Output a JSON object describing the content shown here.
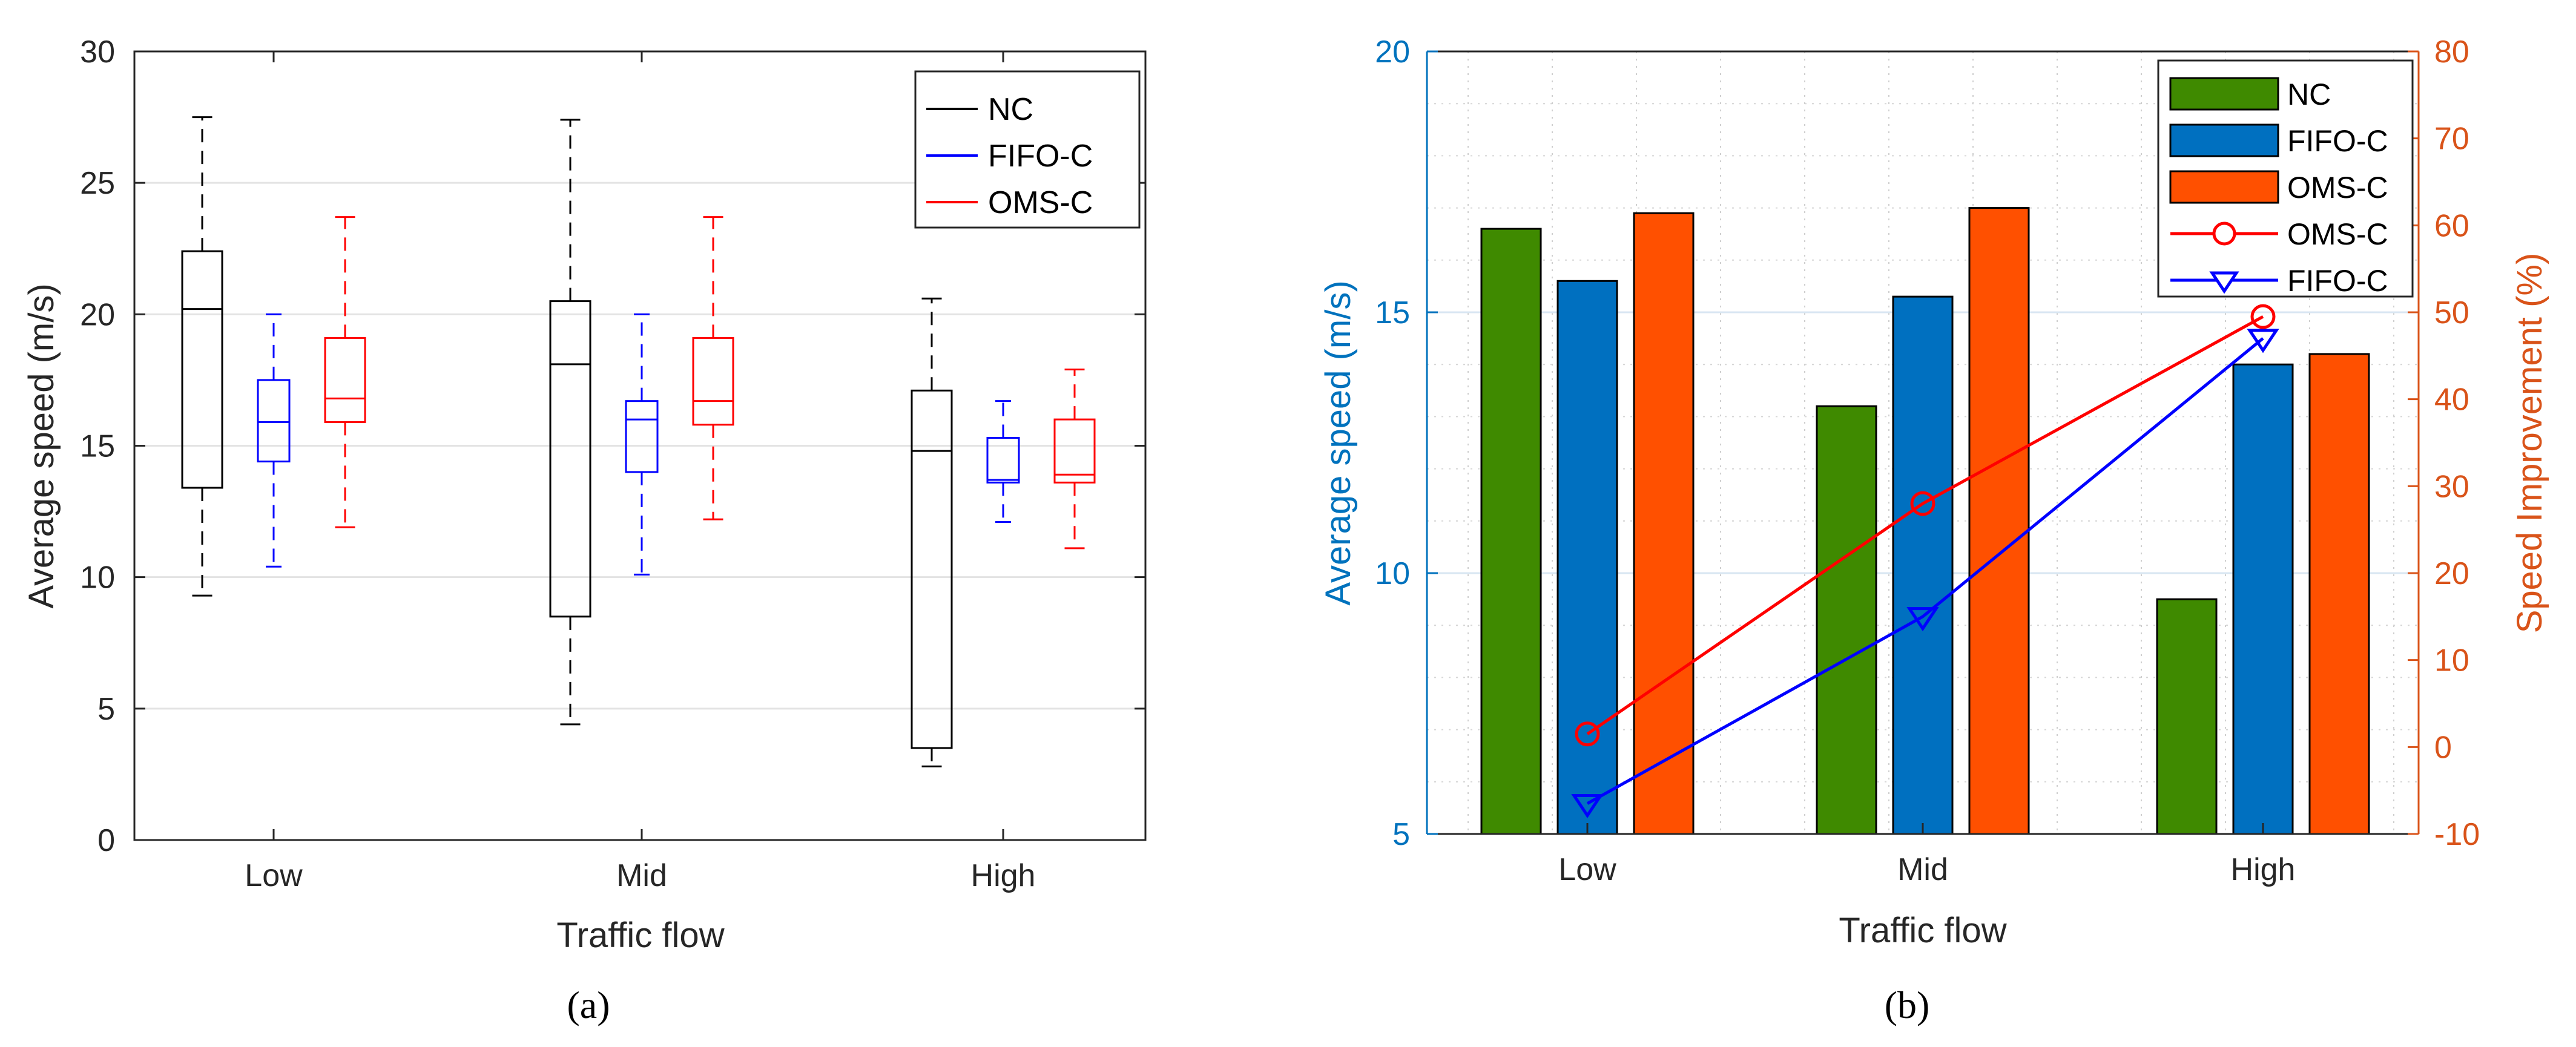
{
  "chart_data": [
    {
      "type": "box",
      "panel_label": "(a)",
      "panel_letter": "a",
      "xlabel": "Traffic flow",
      "ylabel": "Average speed (m/s)",
      "ylim": [
        0,
        30
      ],
      "yticks": [
        0,
        5,
        10,
        15,
        20,
        25,
        30
      ],
      "ytick_labels": [
        "0",
        "5",
        "10",
        "15",
        "20",
        "25",
        "30"
      ],
      "grid": "horizontal",
      "categories": [
        "Low",
        "Mid",
        "High"
      ],
      "legend": {
        "position": "top-right",
        "entries": [
          "NC",
          "FIFO-C",
          "OMS-C"
        ]
      },
      "series": [
        {
          "name": "NC",
          "color": "#000000",
          "boxes": [
            {
              "whisker_low": 9.3,
              "q1": 13.4,
              "median": 20.2,
              "q3": 22.4,
              "whisker_high": 27.5
            },
            {
              "whisker_low": 4.4,
              "q1": 8.5,
              "median": 18.1,
              "q3": 20.5,
              "whisker_high": 27.4
            },
            {
              "whisker_low": 2.8,
              "q1": 3.5,
              "median": 14.8,
              "q3": 17.1,
              "whisker_high": 20.6
            }
          ]
        },
        {
          "name": "FIFO-C",
          "color": "#0000ff",
          "boxes": [
            {
              "whisker_low": 10.4,
              "q1": 14.4,
              "median": 15.9,
              "q3": 17.5,
              "whisker_high": 20.0
            },
            {
              "whisker_low": 10.1,
              "q1": 14.0,
              "median": 16.0,
              "q3": 16.7,
              "whisker_high": 20.0
            },
            {
              "whisker_low": 12.1,
              "q1": 13.6,
              "median": 13.7,
              "q3": 15.3,
              "whisker_high": 16.7
            }
          ]
        },
        {
          "name": "OMS-C",
          "color": "#ff0000",
          "boxes": [
            {
              "whisker_low": 11.9,
              "q1": 15.9,
              "median": 16.8,
              "q3": 19.1,
              "whisker_high": 23.7
            },
            {
              "whisker_low": 12.2,
              "q1": 15.8,
              "median": 16.7,
              "q3": 19.1,
              "whisker_high": 23.7
            },
            {
              "whisker_low": 11.1,
              "q1": 13.6,
              "median": 13.9,
              "q3": 16.0,
              "whisker_high": 17.9
            }
          ]
        }
      ]
    },
    {
      "type": "bar+line",
      "panel_label": "(b)",
      "panel_letter": "b",
      "xlabel": "Traffic flow",
      "ylabel": "Average speed (m/s)",
      "ylabel_right": "Speed Improvement (%)",
      "ylim": [
        5,
        20
      ],
      "yticks": [
        5,
        10,
        15,
        20
      ],
      "ytick_labels": [
        "5",
        "10",
        "15",
        "20"
      ],
      "ylim_right": [
        -10,
        80
      ],
      "yticks_right": [
        -10,
        0,
        10,
        20,
        30,
        40,
        50,
        60,
        70,
        80
      ],
      "ytick_labels_right": [
        "-10",
        "0",
        "10",
        "20",
        "30",
        "40",
        "50",
        "60",
        "70",
        "80"
      ],
      "grid": "both-dotted",
      "categories": [
        "Low",
        "Mid",
        "High"
      ],
      "legend": {
        "position": "top-right",
        "entries": [
          "NC",
          "FIFO-C",
          "OMS-C",
          "OMS-C",
          "FIFO-C"
        ]
      },
      "bar_series": [
        {
          "name": "NC",
          "color": "#3f8a00",
          "values": [
            16.6,
            13.2,
            9.5
          ]
        },
        {
          "name": "FIFO-C",
          "color": "#0070c0",
          "values": [
            15.6,
            15.3,
            14.0
          ]
        },
        {
          "name": "OMS-C",
          "color": "#ff5000",
          "values": [
            16.9,
            17.0,
            14.2
          ]
        }
      ],
      "line_series": [
        {
          "name": "OMS-C",
          "color": "#ff0000",
          "marker": "circle",
          "axis": "right",
          "values": [
            1.5,
            28.0,
            49.5
          ]
        },
        {
          "name": "FIFO-C",
          "color": "#0000ff",
          "marker": "triangle-down",
          "axis": "right",
          "values": [
            -6.5,
            15.0,
            47.0
          ]
        }
      ],
      "left_axis_color": "#0072bd",
      "right_axis_color": "#d95319"
    }
  ]
}
